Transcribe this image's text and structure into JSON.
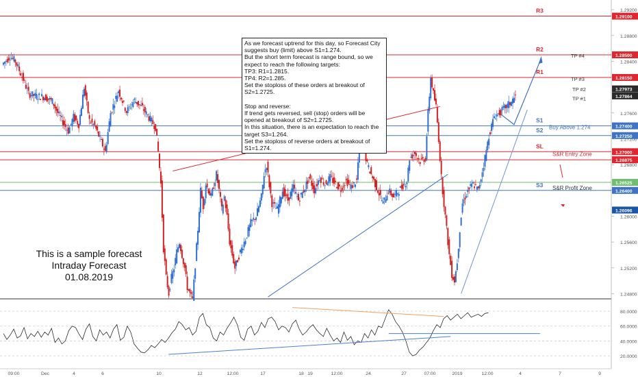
{
  "colors": {
    "up": "#2d6fd6",
    "down": "#d32020",
    "resistance": "#e0262e",
    "support": "#3f74c4",
    "support_light": "#6f95cf",
    "green": "#6fbf6f",
    "rsi_line": "#2b2b2b",
    "rsi_trend_orange": "#f2a25c",
    "rsi_trend_blue": "#4a7fcf",
    "axis_text": "#555555",
    "grid": "#eeeeee"
  },
  "note": {
    "text": "As we forecast uptrend for this day, so Forecast City suggests buy (limit) above S1=1.274.\nBut the short term forecast is range bound, so we expect to reach the following targets:\nTP3: R1=1.2815.\nTP4: R2=1.285.\nSet the stoploss of these orders at breakout of S2=1.2725.\n\nStop and reverse:\nIf trend gets reversed, sell (stop) orders will be opened at breakout of S2=1.2725.\nIn this situation, there is an expectation to reach the target S3=1.264.\nSet the stoploss of reverse orders at breakout of S1=1.274."
  },
  "sample": {
    "line1": "This is a sample forecast",
    "line2": "Intraday Forecast",
    "line3": "01.08.2019"
  },
  "levels": [
    {
      "name": "R3",
      "value": 1.291,
      "color": "#e0262e",
      "price_tag": "1.29100"
    },
    {
      "name": "R2",
      "value": 1.285,
      "color": "#e0262e",
      "price_tag": "1.28500"
    },
    {
      "name": "R1",
      "value": 1.2815,
      "color": "#e0262e",
      "price_tag": "1.28150"
    },
    {
      "name": "S1",
      "value": 1.274,
      "color": "#3f74c4",
      "price_tag": "1.27400"
    },
    {
      "name": "S2",
      "value": 1.2725,
      "color": "#3f74c4",
      "price_tag": "1.27250"
    },
    {
      "name": "SL",
      "value": 1.27,
      "color": "#e0262e",
      "price_tag": "1.27000"
    },
    {
      "name": "",
      "value": 1.26875,
      "color": "#e0262e",
      "price_tag": "1.26875"
    },
    {
      "name": "",
      "value": 1.26525,
      "color": "#6fbf6f",
      "price_tag": "1.26525"
    },
    {
      "name": "S3",
      "value": 1.264,
      "color": "#3f74c4",
      "price_tag": "1.26400"
    }
  ],
  "markers": {
    "tp4": "TP #4",
    "tp3": "TP #3",
    "tp2": "TP #2",
    "tp1": "TP #1",
    "buy_above": "Buy Above 1.274",
    "entry_zone": "S&R Entry Zone",
    "profit_zone": "S&R Profit Zone"
  },
  "chart_data": [
    {
      "type": "candlestick",
      "title": "",
      "x_ticks": [
        "09:00",
        "Dec",
        "4",
        "6",
        "10",
        "12",
        "12:00",
        "17",
        "18",
        "19",
        "12:00",
        "24",
        "27",
        "07:00",
        "2019",
        "12:00",
        "4",
        "7",
        "9",
        "12:00"
      ],
      "y_ticks": [
        "1.29200",
        "1.28800",
        "1.28400",
        "1.27600",
        "1.27200",
        "1.26800",
        "1.26400",
        "1.26000",
        "1.25600",
        "1.25200",
        "1.24800"
      ],
      "ylim": [
        1.2472,
        1.2935
      ],
      "last_price_tags": [
        {
          "label": "1.27973",
          "color": "#2b2b2b"
        },
        {
          "label": "1.27864",
          "color": "#2b2b2b"
        },
        {
          "label": "1.26096",
          "color": "#1a55a8"
        }
      ],
      "price_path": [
        [
          0,
          1.2835
        ],
        [
          3,
          1.2848
        ],
        [
          5,
          1.284
        ],
        [
          8,
          1.2812
        ],
        [
          10,
          1.279
        ],
        [
          13,
          1.2786
        ],
        [
          16,
          1.2785
        ],
        [
          19,
          1.2778
        ],
        [
          21,
          1.276
        ],
        [
          23,
          1.2746
        ],
        [
          25,
          1.2732
        ],
        [
          27,
          1.2754
        ],
        [
          29,
          1.2742
        ],
        [
          31,
          1.28
        ],
        [
          33,
          1.2748
        ],
        [
          35,
          1.274
        ],
        [
          37,
          1.272
        ],
        [
          39,
          1.27
        ],
        [
          41,
          1.276
        ],
        [
          44,
          1.2795
        ],
        [
          47,
          1.2762
        ],
        [
          50,
          1.278
        ],
        [
          53,
          1.2768
        ],
        [
          56,
          1.275
        ],
        [
          58,
          1.2738
        ],
        [
          59,
          1.27
        ],
        [
          60,
          1.265
        ],
        [
          61,
          1.255
        ],
        [
          62,
          1.2505
        ],
        [
          63,
          1.248
        ],
        [
          64,
          1.2505
        ],
        [
          65,
          1.252
        ],
        [
          66,
          1.2545
        ],
        [
          67,
          1.256
        ],
        [
          68,
          1.254
        ],
        [
          69,
          1.252
        ],
        [
          70,
          1.249
        ],
        [
          72,
          1.247
        ],
        [
          74,
          1.258
        ],
        [
          75,
          1.264
        ],
        [
          76,
          1.2615
        ],
        [
          77,
          1.265
        ],
        [
          79,
          1.263
        ],
        [
          81,
          1.2665
        ],
        [
          82,
          1.264
        ],
        [
          83,
          1.261
        ],
        [
          84,
          1.263
        ],
        [
          85,
          1.26
        ],
        [
          86,
          1.256
        ],
        [
          87,
          1.254
        ],
        [
          88,
          1.252
        ],
        [
          90,
          1.2545
        ],
        [
          92,
          1.2565
        ],
        [
          94,
          1.259
        ],
        [
          96,
          1.26
        ],
        [
          98,
          1.263
        ],
        [
          99,
          1.2665
        ],
        [
          100,
          1.268
        ],
        [
          101,
          1.2648
        ],
        [
          102,
          1.262
        ],
        [
          104,
          1.261
        ],
        [
          106,
          1.264
        ],
        [
          108,
          1.2625
        ],
        [
          110,
          1.2645
        ],
        [
          112,
          1.2625
        ],
        [
          114,
          1.264
        ],
        [
          116,
          1.266
        ],
        [
          118,
          1.264
        ],
        [
          120,
          1.266
        ],
        [
          122,
          1.265
        ],
        [
          124,
          1.266
        ],
        [
          126,
          1.265
        ],
        [
          128,
          1.2642
        ],
        [
          130,
          1.2655
        ],
        [
          132,
          1.2645
        ],
        [
          134,
          1.2655
        ],
        [
          135,
          1.271
        ],
        [
          136,
          1.2735
        ],
        [
          137,
          1.27
        ],
        [
          138,
          1.268
        ],
        [
          140,
          1.266
        ],
        [
          142,
          1.264
        ],
        [
          144,
          1.262
        ],
        [
          146,
          1.264
        ],
        [
          148,
          1.263
        ],
        [
          150,
          1.264
        ],
        [
          152,
          1.265
        ],
        [
          153,
          1.2655
        ],
        [
          154,
          1.269
        ],
        [
          156,
          1.2698
        ],
        [
          158,
          1.2685
        ],
        [
          160,
          1.269
        ],
        [
          161,
          1.276
        ],
        [
          162,
          1.2815
        ],
        [
          163,
          1.279
        ],
        [
          164,
          1.277
        ],
        [
          165,
          1.272
        ],
        [
          166,
          1.266
        ],
        [
          167,
          1.262
        ],
        [
          168,
          1.258
        ],
        [
          169,
          1.254
        ],
        [
          170,
          1.251
        ],
        [
          171,
          1.25
        ],
        [
          172,
          1.253
        ],
        [
          173,
          1.258
        ],
        [
          174,
          1.262
        ],
        [
          176,
          1.264
        ],
        [
          178,
          1.265
        ],
        [
          180,
          1.264
        ],
        [
          182,
          1.268
        ],
        [
          184,
          1.2725
        ],
        [
          186,
          1.2755
        ],
        [
          188,
          1.276
        ],
        [
          190,
          1.2768
        ],
        [
          192,
          1.2775
        ],
        [
          194,
          1.2786
        ]
      ],
      "overlay_lines": [
        {
          "name": "",
          "color": "#e0262e",
          "from": [
            64,
            1.267
          ],
          "to": [
            165,
            1.277
          ]
        },
        {
          "name": "",
          "color": "#3f74c4",
          "from": [
            100,
            1.2475
          ],
          "to": [
            168,
            1.2665
          ]
        },
        {
          "name": "",
          "color": "#6f95cf",
          "from": [
            173,
            1.248
          ],
          "to": [
            198,
            1.2765
          ]
        }
      ]
    },
    {
      "type": "line",
      "title": "",
      "y_ticks": [
        "80.0000",
        "60.0000",
        "40.0000",
        "20.0000"
      ],
      "ylim": [
        10,
        92
      ],
      "values": [
        50,
        42,
        48,
        56,
        44,
        47,
        58,
        43,
        50,
        46,
        53,
        45,
        52,
        48,
        57,
        38,
        44,
        36,
        40,
        54,
        60,
        58,
        49,
        42,
        56,
        63,
        46,
        40,
        55,
        48,
        52,
        44,
        56,
        62,
        41,
        45,
        60,
        52,
        36,
        30,
        25,
        24,
        28,
        34,
        31,
        36,
        42,
        38,
        44,
        51,
        56,
        66,
        62,
        55,
        58,
        48,
        53,
        72,
        77,
        62,
        58,
        44,
        40,
        52,
        48,
        57,
        64,
        72,
        62,
        45,
        41,
        56,
        60,
        48,
        53,
        65,
        58,
        70,
        72,
        66,
        55,
        60,
        58,
        52,
        63,
        68,
        56,
        48,
        52,
        58,
        62,
        55,
        50,
        46,
        57,
        48,
        40,
        44,
        38,
        52,
        41,
        46,
        35,
        40,
        38,
        50,
        44,
        55,
        48,
        60,
        58,
        70,
        82,
        76,
        66,
        60,
        52,
        40,
        25,
        20,
        22,
        28,
        32,
        38,
        44,
        54,
        62,
        58,
        70,
        74,
        68,
        72,
        76,
        70,
        74,
        78,
        72,
        74,
        76,
        73,
        77,
        78
      ],
      "levels": [
        80,
        60,
        40,
        20
      ],
      "trendlines": [
        {
          "name": "",
          "color": "#f2a25c",
          "from": [
            84,
            85
          ],
          "to": [
            128,
            73
          ]
        },
        {
          "name": "",
          "color": "#4a7fcf",
          "from": [
            48,
            22
          ],
          "to": [
            130,
            46
          ]
        },
        {
          "name": "",
          "color": "#4a7fcf",
          "from": [
            112,
            50
          ],
          "to": [
            156,
            50
          ]
        }
      ]
    }
  ]
}
